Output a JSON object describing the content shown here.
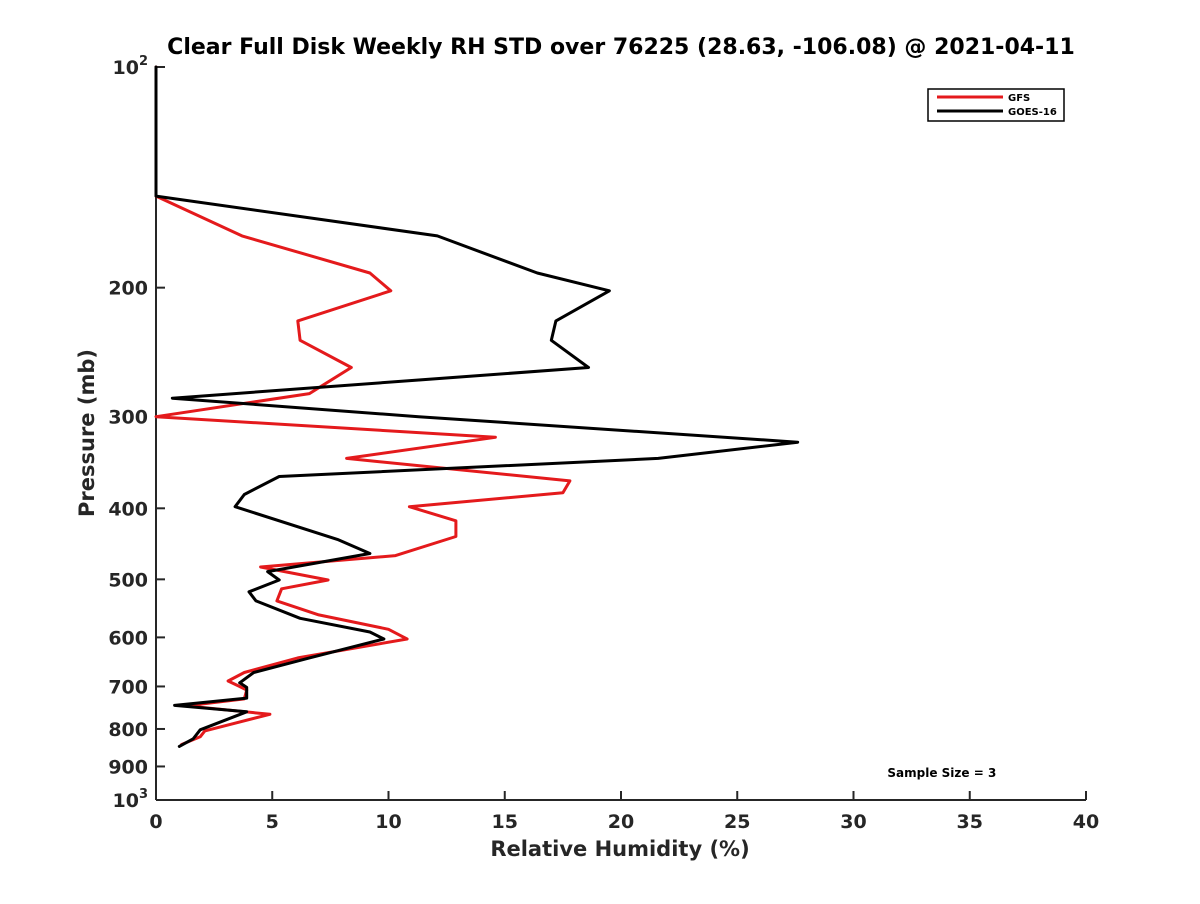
{
  "chart_data": {
    "type": "line",
    "title": "Clear Full Disk Weekly RH STD over 76225 (28.63, -106.08) @ 2021-04-11",
    "xlabel": "Relative Humidity (%)",
    "ylabel": "Pressure (mb)",
    "xlim": [
      0,
      40
    ],
    "ylim": [
      100,
      1000
    ],
    "yscale": "log",
    "y_reversed": true,
    "grid": false,
    "legend_position": "top-right",
    "x_ticks": [
      0,
      5,
      10,
      15,
      20,
      25,
      30,
      35,
      40
    ],
    "y_ticks": [
      {
        "value": 100,
        "base": "10",
        "exp": "2"
      },
      {
        "value": 200,
        "label": "200"
      },
      {
        "value": 300,
        "label": "300"
      },
      {
        "value": 400,
        "label": "400"
      },
      {
        "value": 500,
        "label": "500"
      },
      {
        "value": 600,
        "label": "600"
      },
      {
        "value": 700,
        "label": "700"
      },
      {
        "value": 800,
        "label": "800"
      },
      {
        "value": 900,
        "label": "900"
      },
      {
        "value": 1000,
        "base": "10",
        "exp": "3"
      }
    ],
    "series": [
      {
        "name": "GFS",
        "color": "#e41a1c",
        "points": [
          [
            0,
            100
          ],
          [
            0,
            150
          ],
          [
            3.7,
            170
          ],
          [
            9.2,
            191
          ],
          [
            10.1,
            202
          ],
          [
            6.1,
            222
          ],
          [
            6.2,
            236
          ],
          [
            8.4,
            257
          ],
          [
            6.6,
            279
          ],
          [
            0,
            300
          ],
          [
            14.6,
            320
          ],
          [
            8.2,
            342
          ],
          [
            17.8,
            367
          ],
          [
            17.5,
            381
          ],
          [
            10.9,
            398
          ],
          [
            12.9,
            416
          ],
          [
            12.9,
            437
          ],
          [
            10.3,
            464
          ],
          [
            4.5,
            481
          ],
          [
            7.4,
            501
          ],
          [
            5.4,
            515
          ],
          [
            5.2,
            535
          ],
          [
            7.0,
            559
          ],
          [
            10.0,
            585
          ],
          [
            10.8,
            603
          ],
          [
            6.1,
            640
          ],
          [
            3.8,
            670
          ],
          [
            3.1,
            688
          ],
          [
            3.6,
            700
          ],
          [
            3.9,
            708
          ],
          [
            3.8,
            728
          ],
          [
            1.3,
            744
          ],
          [
            4.9,
            764
          ],
          [
            2.1,
            805
          ],
          [
            1.9,
            820
          ],
          [
            1.1,
            840
          ]
        ]
      },
      {
        "name": "GOES-16",
        "color": "#000000",
        "points": [
          [
            0,
            100
          ],
          [
            0,
            150
          ],
          [
            12.1,
            170
          ],
          [
            16.4,
            191
          ],
          [
            19.5,
            202
          ],
          [
            17.2,
            222
          ],
          [
            17.0,
            236
          ],
          [
            18.6,
            257
          ],
          [
            0.7,
            283
          ],
          [
            11.3,
            300
          ],
          [
            27.6,
            325
          ],
          [
            21.6,
            342
          ],
          [
            5.3,
            362
          ],
          [
            3.8,
            383
          ],
          [
            3.4,
            398
          ],
          [
            7.8,
            441
          ],
          [
            9.2,
            461
          ],
          [
            4.8,
            488
          ],
          [
            5.3,
            501
          ],
          [
            4.0,
            520
          ],
          [
            4.3,
            535
          ],
          [
            6.2,
            565
          ],
          [
            9.2,
            590
          ],
          [
            9.8,
            603
          ],
          [
            6.6,
            640
          ],
          [
            4.2,
            670
          ],
          [
            3.6,
            692
          ],
          [
            3.9,
            702
          ],
          [
            3.9,
            726
          ],
          [
            0.8,
            743
          ],
          [
            3.9,
            758
          ],
          [
            1.9,
            802
          ],
          [
            1.6,
            825
          ],
          [
            1.0,
            845
          ]
        ]
      }
    ],
    "annotations": [
      {
        "text": "Sample Size = 3",
        "x": 33.8,
        "y": 930
      }
    ]
  }
}
